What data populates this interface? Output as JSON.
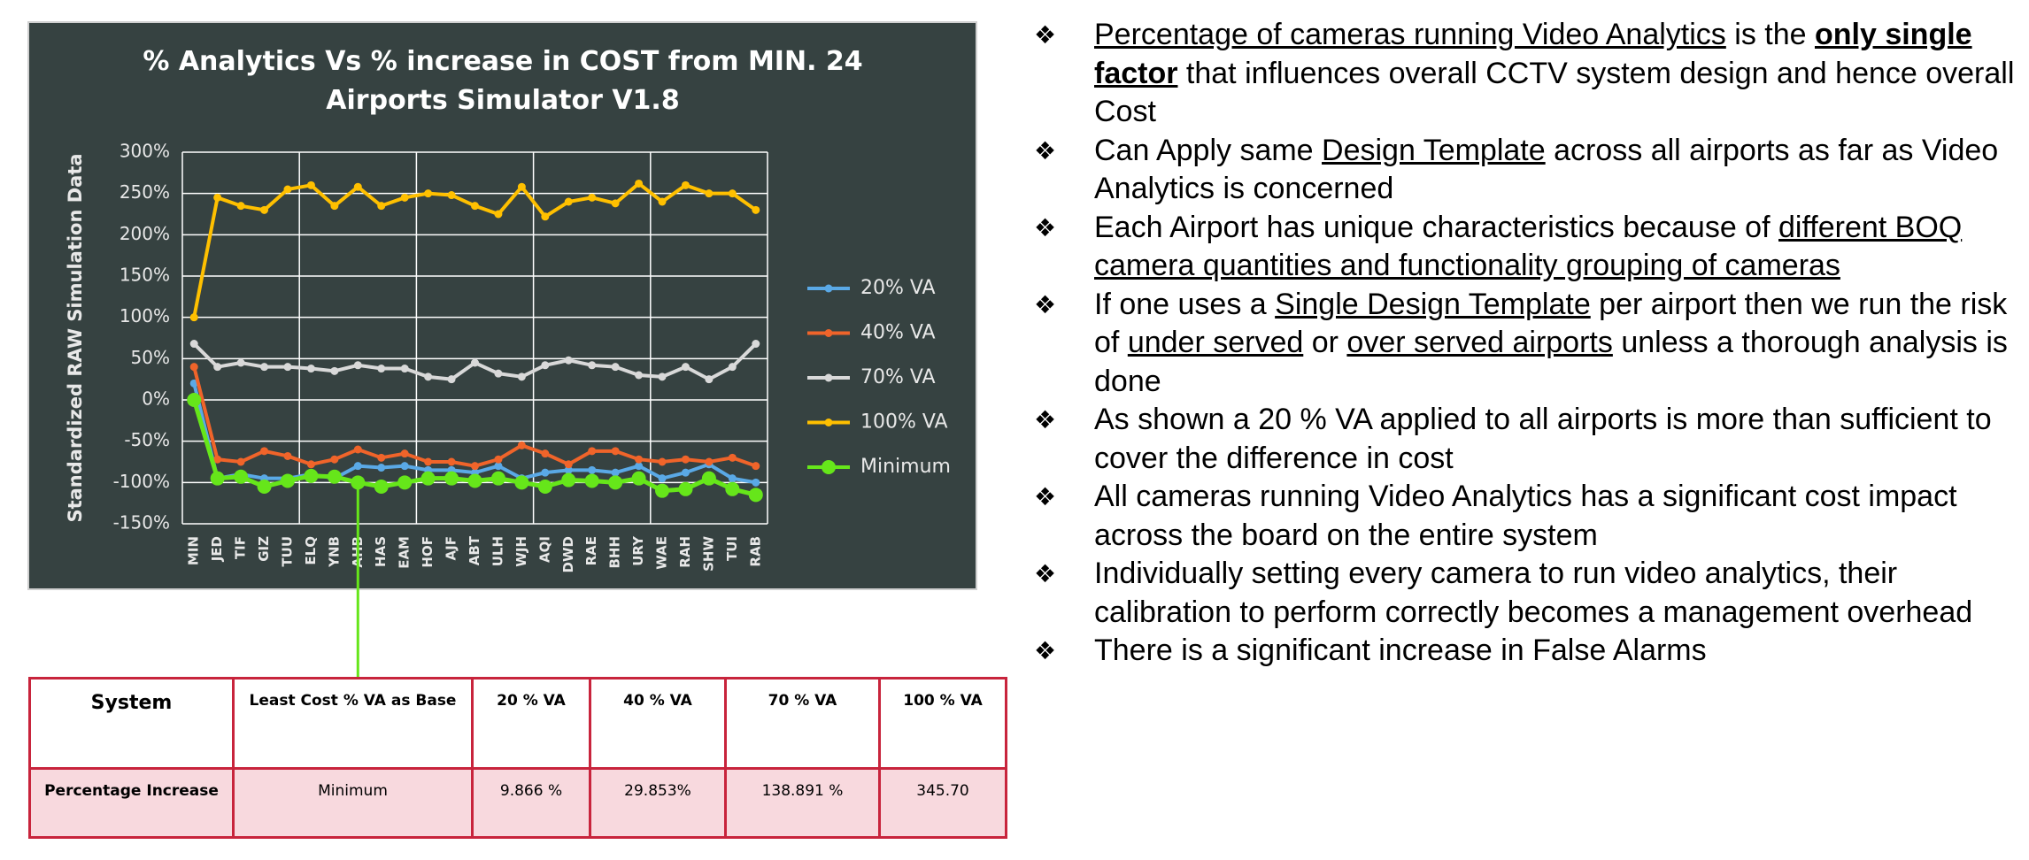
{
  "chart_data": {
    "type": "line",
    "title": "% Analytics Vs % increase in COST from MIN. 24 Airports Simulator V1.8",
    "y_label": "Standardized RAW Simulation Data",
    "categories": [
      "MIN",
      "JED",
      "TIF",
      "GIZ",
      "TUU",
      "ELQ",
      "YNB",
      "AHB",
      "HAS",
      "EAM",
      "HOF",
      "AJF",
      "ABT",
      "ULH",
      "WJH",
      "AQI",
      "DWD",
      "RAE",
      "BHH",
      "URY",
      "WAE",
      "RAH",
      "SHW",
      "TUI",
      "RAB"
    ],
    "series": [
      {
        "name": "20% VA",
        "color": "#5aa9e6",
        "values": [
          20,
          -95,
          -90,
          -95,
          -95,
          -90,
          -95,
          -80,
          -82,
          -80,
          -85,
          -85,
          -88,
          -80,
          -95,
          -88,
          -85,
          -85,
          -88,
          -80,
          -95,
          -88,
          -78,
          -95,
          -100
        ]
      },
      {
        "name": "40% VA",
        "color": "#f0642a",
        "values": [
          40,
          -72,
          -75,
          -62,
          -68,
          -78,
          -72,
          -60,
          -70,
          -65,
          -75,
          -75,
          -80,
          -72,
          -55,
          -65,
          -78,
          -62,
          -62,
          -72,
          -75,
          -72,
          -75,
          -70,
          -80
        ]
      },
      {
        "name": "70% VA",
        "color": "#d9d9d9",
        "values": [
          68,
          40,
          45,
          40,
          40,
          38,
          35,
          42,
          38,
          38,
          28,
          25,
          45,
          32,
          28,
          42,
          48,
          42,
          40,
          30,
          28,
          40,
          25,
          40,
          68
        ]
      },
      {
        "name": "100% VA",
        "color": "#ffc000",
        "values": [
          100,
          245,
          235,
          230,
          255,
          260,
          235,
          258,
          235,
          245,
          250,
          248,
          235,
          225,
          258,
          222,
          240,
          245,
          238,
          262,
          240,
          260,
          250,
          250,
          230
        ]
      },
      {
        "name": "Minimum",
        "color": "#66e61a",
        "values": [
          0,
          -95,
          -93,
          -105,
          -98,
          -92,
          -93,
          -100,
          -105,
          -100,
          -95,
          -95,
          -98,
          -95,
          -100,
          -105,
          -97,
          -98,
          -100,
          -95,
          -110,
          -108,
          -95,
          -108,
          -115
        ]
      }
    ],
    "ylim": [
      -150,
      300
    ],
    "yticks": [
      {
        "value": -150,
        "label": "-150%"
      },
      {
        "value": -100,
        "label": "-100%"
      },
      {
        "value": -50,
        "label": "-50%"
      },
      {
        "value": 0,
        "label": "0%"
      },
      {
        "value": 50,
        "label": "50%"
      },
      {
        "value": 100,
        "label": "100%"
      },
      {
        "value": 150,
        "label": "150%"
      },
      {
        "value": 200,
        "label": "200%"
      },
      {
        "value": 250,
        "label": "250%"
      },
      {
        "value": 300,
        "label": "300%"
      }
    ],
    "grid": true,
    "legend": "right"
  },
  "table": {
    "rows": [
      [
        "System",
        "Least Cost % VA as Base",
        "20 % VA",
        "40 % VA",
        "70 % VA",
        "100 % VA"
      ],
      [
        "Percentage Increase",
        "Minimum",
        "9.866 %",
        "29.853%",
        "138.891 %",
        "345.70"
      ]
    ]
  },
  "bullets": [
    [
      {
        "text": "Percentage of cameras running  Video Analytics",
        "style": "u"
      },
      {
        "text": " is the "
      },
      {
        "text": "only single factor",
        "style": "bu"
      },
      {
        "text": " that influences overall CCTV system design and hence overall Cost"
      }
    ],
    [
      {
        "text": "Can Apply same "
      },
      {
        "text": "Design Template",
        "style": "u"
      },
      {
        "text": " across all airports as far as Video Analytics is concerned"
      }
    ],
    [
      {
        "text": "Each Airport has unique characteristics because of "
      },
      {
        "text": "different BOQ camera quantities and functionality grouping of cameras",
        "style": "u"
      }
    ],
    [
      {
        "text": "If one uses a "
      },
      {
        "text": "Single Design Template",
        "style": "u"
      },
      {
        "text": " per airport then we run the risk of "
      },
      {
        "text": "under served",
        "style": "u"
      },
      {
        "text": " or "
      },
      {
        "text": "over served airports",
        "style": "u"
      },
      {
        "text": " unless a thorough analysis is done"
      }
    ],
    [
      {
        "text": "As shown a 20 % VA applied to all airports is more than sufficient to cover the difference in cost"
      }
    ],
    [
      {
        "text": "All cameras running  Video Analytics has a significant cost impact across the board on the entire system"
      }
    ],
    [
      {
        "text": "Individually setting every camera to run video analytics, their calibration to perform correctly becomes a management overhead"
      }
    ],
    [
      {
        "text": "There is a significant increase in False Alarms"
      }
    ]
  ]
}
